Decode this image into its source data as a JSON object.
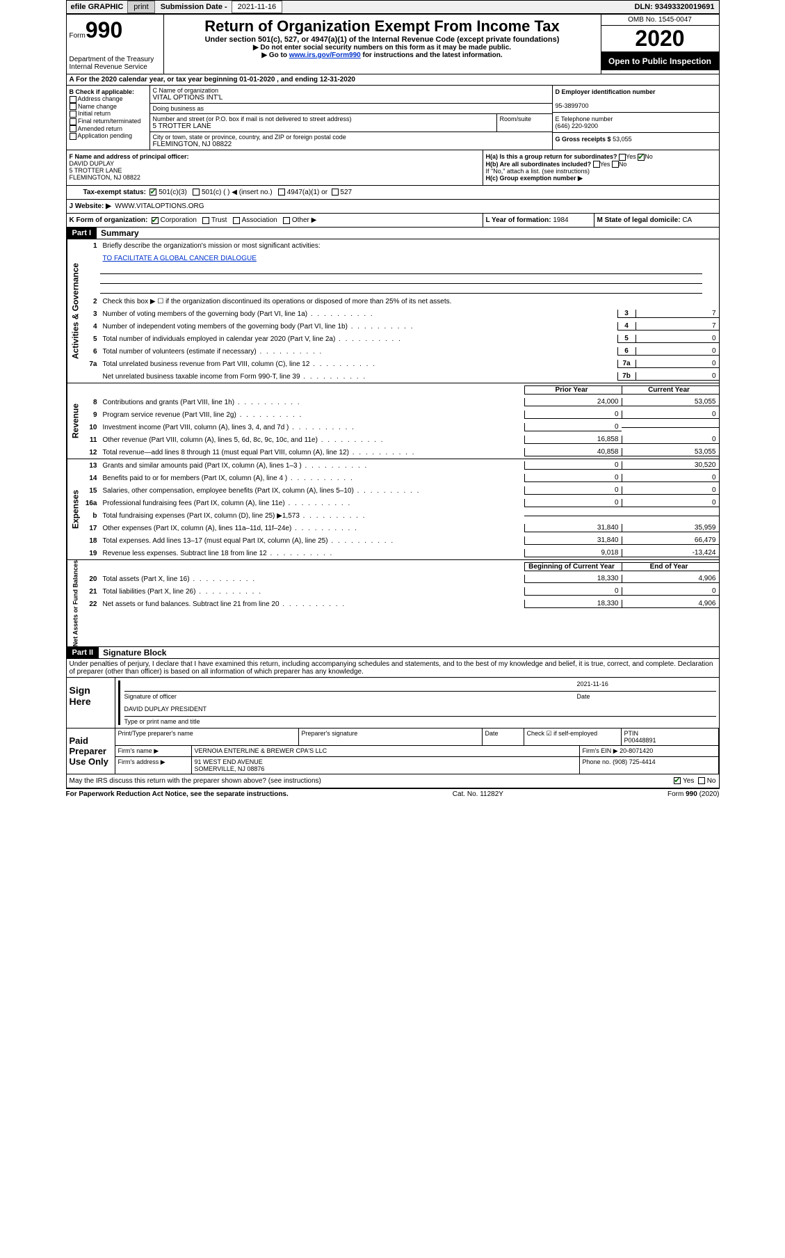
{
  "topbar": {
    "efile": "efile GRAPHIC",
    "print": "print",
    "sublabel": "Submission Date -",
    "subdate": "2021-11-16",
    "dln": "DLN: 93493320019691"
  },
  "header": {
    "formword": "Form",
    "formno": "990",
    "dept": "Department of the Treasury\nInternal Revenue Service",
    "title": "Return of Organization Exempt From Income Tax",
    "subtitle": "Under section 501(c), 527, or 4947(a)(1) of the Internal Revenue Code (except private foundations)",
    "instr1": "▶ Do not enter social security numbers on this form as it may be made public.",
    "instr2a": "▶ Go to ",
    "instr2link": "www.irs.gov/Form990",
    "instr2b": " for instructions and the latest information.",
    "omb": "OMB No. 1545-0047",
    "year": "2020",
    "open": "Open to Public Inspection"
  },
  "lineA": "A For the 2020 calendar year, or tax year beginning 01-01-2020   , and ending 12-31-2020",
  "sectB": {
    "label": "B Check if applicable:",
    "items": [
      "Address change",
      "Name change",
      "Initial return",
      "Final return/terminated",
      "Amended return",
      "Application pending"
    ]
  },
  "sectC": {
    "nameLabel": "C Name of organization",
    "name": "VITAL OPTIONS INT'L",
    "dbaLabel": "Doing business as",
    "dba": "",
    "streetLabel": "Number and street (or P.O. box if mail is not delivered to street address)",
    "suiteLabel": "Room/suite",
    "street": "5 TROTTER LANE",
    "cityLabel": "City or town, state or province, country, and ZIP or foreign postal code",
    "city": "FLEMINGTON, NJ  08822"
  },
  "sectD": {
    "einLabel": "D Employer identification number",
    "ein": "95-3899700",
    "phoneLabel": "E Telephone number",
    "phone": "(646) 220-9200",
    "grossLabel": "G Gross receipts $",
    "gross": "53,055"
  },
  "sectF": {
    "label": "F Name and address of principal officer:",
    "name": "DAVID DUPLAY",
    "addr1": "5 TROTTER LANE",
    "addr2": "FLEMINGTON, NJ  08822"
  },
  "sectH": {
    "ha": "H(a)  Is this a group return for subordinates?",
    "hb": "H(b)  Are all subordinates included?",
    "hbnote": "If \"No,\" attach a list. (see instructions)",
    "hc": "H(c)  Group exemption number ▶",
    "yes": "Yes",
    "no": "No"
  },
  "sectI": {
    "label": "Tax-exempt status:",
    "opts": [
      "501(c)(3)",
      "501(c) (  ) ◀ (insert no.)",
      "4947(a)(1) or",
      "527"
    ]
  },
  "sectJ": {
    "label": "J   Website: ▶",
    "val": "WWW.VITALOPTIONS.ORG"
  },
  "sectK": {
    "label": "K Form of organization:",
    "opts": [
      "Corporation",
      "Trust",
      "Association",
      "Other ▶"
    ]
  },
  "sectL": {
    "label": "L Year of formation:",
    "val": "1984"
  },
  "sectM": {
    "label": "M State of legal domicile:",
    "val": "CA"
  },
  "part1": {
    "hdr": "Part I",
    "title": "Summary"
  },
  "summary": {
    "line1label": "Briefly describe the organization's mission or most significant activities:",
    "line1val": "TO FACILITATE A GLOBAL CANCER DIALOGUE",
    "line2": "Check this box ▶ ☐  if the organization discontinued its operations or disposed of more than 25% of its net assets.",
    "rows": [
      {
        "n": "3",
        "t": "Number of voting members of the governing body (Part VI, line 1a)",
        "c": "3",
        "v": "7"
      },
      {
        "n": "4",
        "t": "Number of independent voting members of the governing body (Part VI, line 1b)",
        "c": "4",
        "v": "7"
      },
      {
        "n": "5",
        "t": "Total number of individuals employed in calendar year 2020 (Part V, line 2a)",
        "c": "5",
        "v": "0"
      },
      {
        "n": "6",
        "t": "Total number of volunteers (estimate if necessary)",
        "c": "6",
        "v": "0"
      },
      {
        "n": "7a",
        "t": "Total unrelated business revenue from Part VIII, column (C), line 12",
        "c": "7a",
        "v": "0"
      },
      {
        "n": "",
        "t": "Net unrelated business taxable income from Form 990-T, line 39",
        "c": "7b",
        "v": "0"
      }
    ]
  },
  "revhdr": {
    "prior": "Prior Year",
    "curr": "Current Year"
  },
  "revenue": [
    {
      "n": "8",
      "t": "Contributions and grants (Part VIII, line 1h)",
      "p": "24,000",
      "c": "53,055"
    },
    {
      "n": "9",
      "t": "Program service revenue (Part VIII, line 2g)",
      "p": "0",
      "c": "0"
    },
    {
      "n": "10",
      "t": "Investment income (Part VIII, column (A), lines 3, 4, and 7d )",
      "p": "0",
      "c": ""
    },
    {
      "n": "11",
      "t": "Other revenue (Part VIII, column (A), lines 5, 6d, 8c, 9c, 10c, and 11e)",
      "p": "16,858",
      "c": "0"
    },
    {
      "n": "12",
      "t": "Total revenue—add lines 8 through 11 (must equal Part VIII, column (A), line 12)",
      "p": "40,858",
      "c": "53,055"
    }
  ],
  "expenses": [
    {
      "n": "13",
      "t": "Grants and similar amounts paid (Part IX, column (A), lines 1–3 )",
      "p": "0",
      "c": "30,520"
    },
    {
      "n": "14",
      "t": "Benefits paid to or for members (Part IX, column (A), line 4 )",
      "p": "0",
      "c": "0"
    },
    {
      "n": "15",
      "t": "Salaries, other compensation, employee benefits (Part IX, column (A), lines 5–10)",
      "p": "0",
      "c": "0"
    },
    {
      "n": "16a",
      "t": "Professional fundraising fees (Part IX, column (A), line 11e)",
      "p": "0",
      "c": "0"
    },
    {
      "n": "b",
      "t": "Total fundraising expenses (Part IX, column (D), line 25) ▶1,573",
      "p": "",
      "c": "",
      "grey": true
    },
    {
      "n": "17",
      "t": "Other expenses (Part IX, column (A), lines 11a–11d, 11f–24e)",
      "p": "31,840",
      "c": "35,959"
    },
    {
      "n": "18",
      "t": "Total expenses. Add lines 13–17 (must equal Part IX, column (A), line 25)",
      "p": "31,840",
      "c": "66,479"
    },
    {
      "n": "19",
      "t": "Revenue less expenses. Subtract line 18 from line 12",
      "p": "9,018",
      "c": "-13,424"
    }
  ],
  "nethdr": {
    "begin": "Beginning of Current Year",
    "end": "End of Year"
  },
  "netassets": [
    {
      "n": "20",
      "t": "Total assets (Part X, line 16)",
      "p": "18,330",
      "c": "4,906"
    },
    {
      "n": "21",
      "t": "Total liabilities (Part X, line 26)",
      "p": "0",
      "c": "0"
    },
    {
      "n": "22",
      "t": "Net assets or fund balances. Subtract line 21 from line 20",
      "p": "18,330",
      "c": "4,906"
    }
  ],
  "vlabels": {
    "ag": "Activities & Governance",
    "rev": "Revenue",
    "exp": "Expenses",
    "net": "Net Assets or Fund Balances"
  },
  "part2": {
    "hdr": "Part II",
    "title": "Signature Block"
  },
  "penalties": "Under penalties of perjury, I declare that I have examined this return, including accompanying schedules and statements, and to the best of my knowledge and belief, it is true, correct, and complete. Declaration of preparer (other than officer) is based on all information of which preparer has any knowledge.",
  "sign": {
    "here": "Sign Here",
    "sigoff": "Signature of officer",
    "date": "Date",
    "dateval": "2021-11-16",
    "typed": "DAVID DUPLAY PRESIDENT",
    "typelabel": "Type or print name and title"
  },
  "paid": {
    "label": "Paid Preparer Use Only",
    "printname": "Print/Type preparer's name",
    "prepsig": "Preparer's signature",
    "date": "Date",
    "check": "Check ☑ if self-employed",
    "ptin": "PTIN",
    "ptinval": "P00448891",
    "firmname": "Firm's name    ▶",
    "firmnameval": "VERNOIA ENTERLINE & BREWER CPA'S LLC",
    "firmein": "Firm's EIN ▶",
    "firmeinval": "20-8071420",
    "firmaddr": "Firm's address ▶",
    "firmaddrval": "91 WEST END AVENUE",
    "firmcity": "SOMERVILLE, NJ  08876",
    "phone": "Phone no.",
    "phoneval": "(908) 725-4414"
  },
  "discuss": "May the IRS discuss this return with the preparer shown above? (see instructions)",
  "footer": {
    "l": "For Paperwork Reduction Act Notice, see the separate instructions.",
    "m": "Cat. No. 11282Y",
    "r": "Form 990 (2020)"
  }
}
